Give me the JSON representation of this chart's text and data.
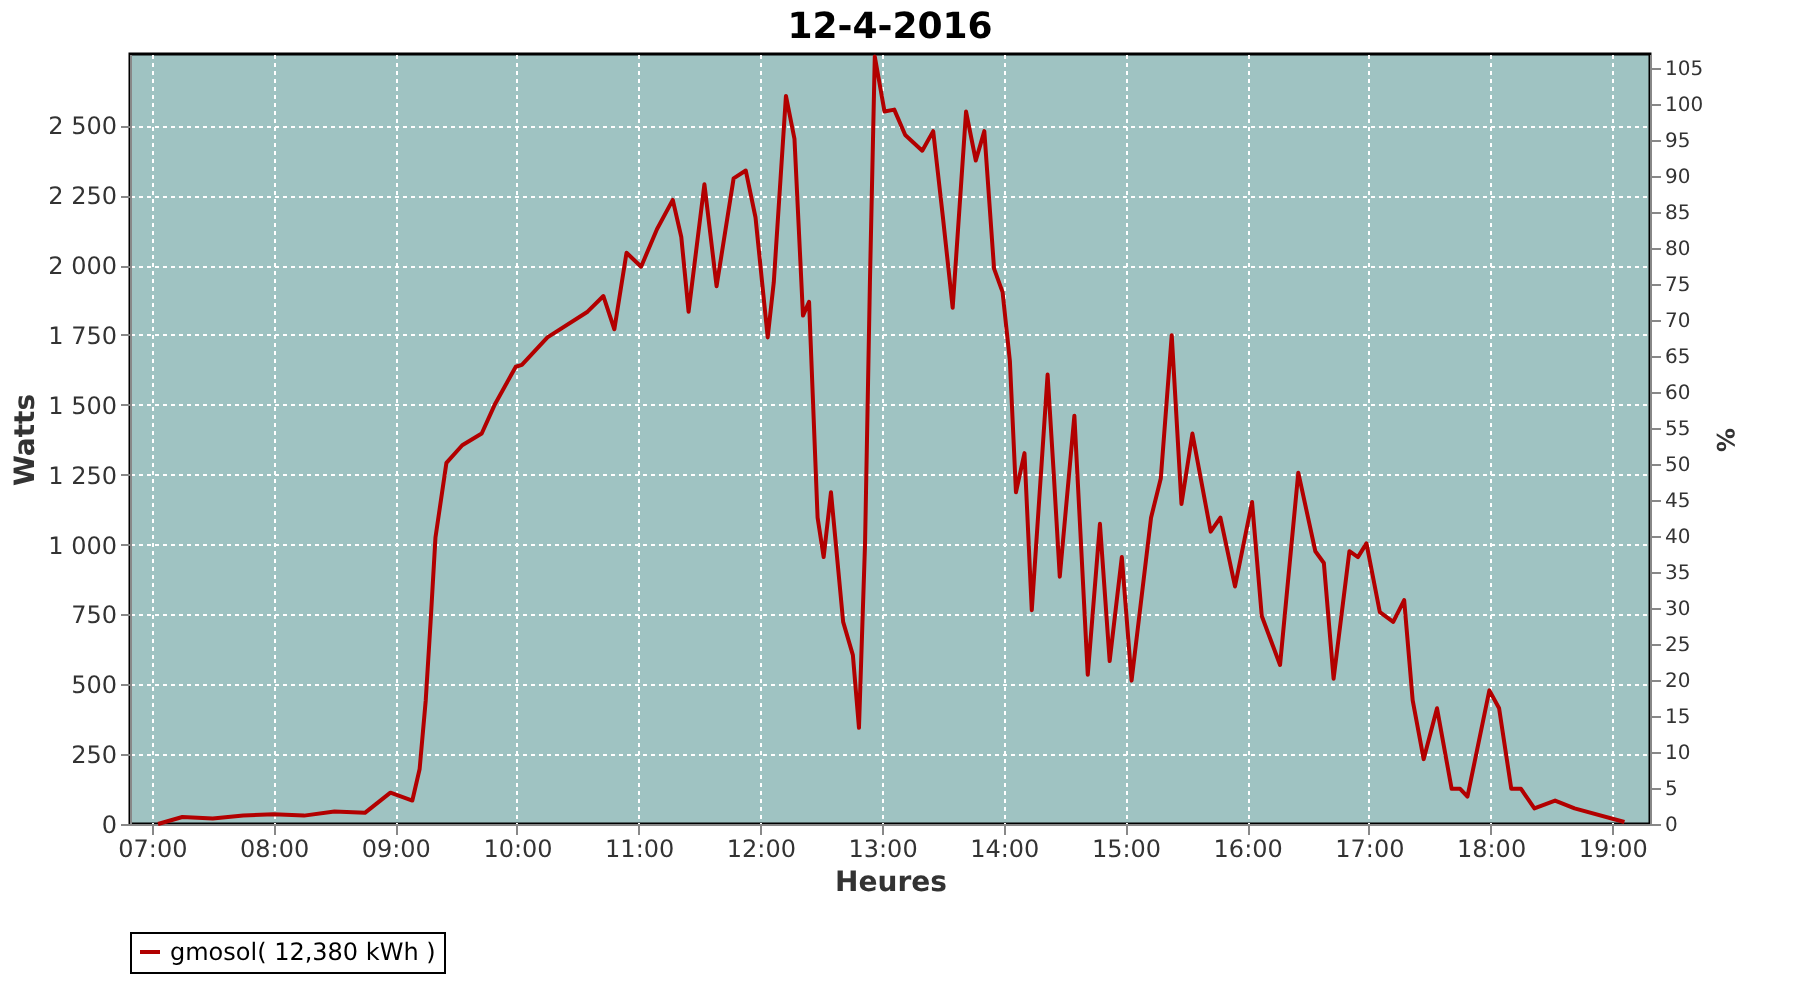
{
  "chart_data": {
    "type": "line",
    "title": "12-4-2016",
    "xlabel": "Heures",
    "ylabel": "Watts",
    "y2label": "%",
    "x": [
      7.05,
      7.25,
      7.5,
      7.75,
      8.0,
      8.25,
      8.5,
      8.75,
      8.96,
      9.14,
      9.2,
      9.25,
      9.29,
      9.33,
      9.42,
      9.55,
      9.71,
      9.82,
      9.99,
      10.04,
      10.25,
      10.58,
      10.71,
      10.8,
      10.9,
      11.02,
      11.15,
      11.28,
      11.35,
      11.41,
      11.54,
      11.64,
      11.78,
      11.88,
      11.96,
      12.06,
      12.11,
      12.21,
      12.28,
      12.35,
      12.4,
      12.47,
      12.52,
      12.58,
      12.68,
      12.76,
      12.81,
      12.86,
      12.9,
      12.94,
      13.02,
      13.1,
      13.19,
      13.33,
      13.42,
      13.5,
      13.58,
      13.69,
      13.77,
      13.84,
      13.92,
      13.99,
      14.05,
      14.1,
      14.17,
      14.23,
      14.36,
      14.41,
      14.46,
      14.58,
      14.69,
      14.79,
      14.87,
      14.97,
      15.05,
      15.21,
      15.29,
      15.38,
      15.46,
      15.55,
      15.7,
      15.78,
      15.9,
      16.04,
      16.12,
      16.27,
      16.42,
      16.56,
      16.63,
      16.71,
      16.84,
      16.91,
      16.98,
      17.09,
      17.2,
      17.29,
      17.36,
      17.45,
      17.56,
      17.68,
      17.75,
      17.81,
      17.99,
      18.07,
      18.17,
      18.25,
      18.36,
      18.53,
      18.69,
      19.1
    ],
    "series": [
      {
        "name": "gmosol( 12,380 kWh )",
        "color": "#b20000",
        "values": [
          0,
          25,
          20,
          30,
          35,
          30,
          45,
          40,
          112,
          84,
          197,
          442,
          723,
          1025,
          1292,
          1355,
          1397,
          1503,
          1636,
          1643,
          1741,
          1833,
          1889,
          1770,
          2044,
          1994,
          2128,
          2233,
          2100,
          1833,
          2289,
          1924,
          2310,
          2338,
          2170,
          1741,
          1938,
          2605,
          2451,
          1819,
          1868,
          1096,
          955,
          1187,
          723,
          604,
          344,
          1004,
          1938,
          2746,
          2549,
          2556,
          2465,
          2409,
          2479,
          2170,
          1847,
          2549,
          2374,
          2479,
          1987,
          1903,
          1657,
          1187,
          1327,
          765,
          1608,
          1257,
          885,
          1461,
          534,
          1074,
          583,
          955,
          513,
          1096,
          1236,
          1749,
          1145,
          1397,
          1046,
          1096,
          850,
          1152,
          744,
          569,
          1257,
          976,
          934,
          520,
          976,
          955,
          1004,
          758,
          723,
          801,
          442,
          232,
          414,
          126,
          126,
          98,
          478,
          414,
          126,
          126,
          56,
          84,
          56,
          7
        ]
      }
    ],
    "xlim": [
      6.82,
      19.31
    ],
    "xticks": [
      {
        "value": 7,
        "label": "07:00"
      },
      {
        "value": 8,
        "label": "08:00"
      },
      {
        "value": 9,
        "label": "09:00"
      },
      {
        "value": 10,
        "label": "10:00"
      },
      {
        "value": 11,
        "label": "11:00"
      },
      {
        "value": 12,
        "label": "12:00"
      },
      {
        "value": 13,
        "label": "13:00"
      },
      {
        "value": 14,
        "label": "14:00"
      },
      {
        "value": 15,
        "label": "15:00"
      },
      {
        "value": 16,
        "label": "16:00"
      },
      {
        "value": 17,
        "label": "17:00"
      },
      {
        "value": 18,
        "label": "18:00"
      },
      {
        "value": 19,
        "label": "19:00"
      }
    ],
    "ylim": [
      0,
      2755
    ],
    "yticks": [
      0,
      250,
      500,
      750,
      {
        "value": 1000,
        "label": "1 000"
      },
      {
        "value": 1250,
        "label": "1 250"
      },
      {
        "value": 1500,
        "label": "1 500"
      },
      {
        "value": 1750,
        "label": "1 750"
      },
      {
        "value": 2000,
        "label": "2 000"
      },
      {
        "value": 2250,
        "label": "2 250"
      },
      {
        "value": 2500,
        "label": "2 500"
      }
    ],
    "y2lim": [
      0,
      107
    ],
    "y2ticks": [
      0,
      5,
      10,
      15,
      20,
      25,
      30,
      35,
      40,
      45,
      50,
      55,
      60,
      65,
      70,
      75,
      80,
      85,
      90,
      95,
      100,
      105
    ],
    "grid": true,
    "legend": "bottom",
    "marker": "none",
    "line_style": "solid"
  }
}
